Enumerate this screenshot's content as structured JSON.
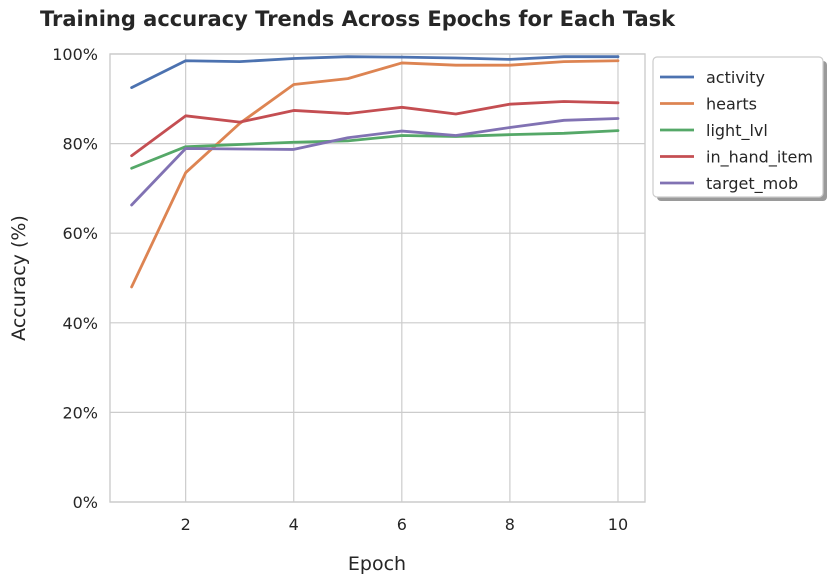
{
  "chart_data": {
    "type": "line",
    "title": "Training accuracy Trends Across Epochs for Each Task",
    "xlabel": "Epoch",
    "ylabel": "Accuracy (%)",
    "x": [
      1,
      2,
      3,
      4,
      5,
      6,
      7,
      8,
      9,
      10
    ],
    "xlim": [
      0.6,
      10.5
    ],
    "ylim": [
      0,
      100
    ],
    "xticks": [
      {
        "value": 2,
        "label": "2"
      },
      {
        "value": 4,
        "label": "4"
      },
      {
        "value": 6,
        "label": "6"
      },
      {
        "value": 8,
        "label": "8"
      },
      {
        "value": 10,
        "label": "10"
      }
    ],
    "yticks": [
      {
        "value": 0,
        "label": "0%"
      },
      {
        "value": 20,
        "label": "20%"
      },
      {
        "value": 40,
        "label": "40%"
      },
      {
        "value": 60,
        "label": "60%"
      },
      {
        "value": 80,
        "label": "80%"
      },
      {
        "value": 100,
        "label": "100%"
      }
    ],
    "grid": true,
    "legend_position": "outside-top-right",
    "series": [
      {
        "name": "activity",
        "color": "#4c72b0",
        "values": [
          92.5,
          98.5,
          98.3,
          99.0,
          99.4,
          99.3,
          99.1,
          98.8,
          99.4,
          99.4
        ]
      },
      {
        "name": "hearts",
        "color": "#dd8452",
        "values": [
          48.0,
          73.5,
          84.5,
          93.2,
          94.5,
          98.0,
          97.5,
          97.5,
          98.3,
          98.5
        ]
      },
      {
        "name": "light_lvl",
        "color": "#55a868",
        "values": [
          74.5,
          79.3,
          79.8,
          80.3,
          80.6,
          81.8,
          81.6,
          82.0,
          82.3,
          82.9
        ]
      },
      {
        "name": "in_hand_item",
        "color": "#c44e52",
        "values": [
          77.3,
          86.2,
          84.8,
          87.4,
          86.7,
          88.1,
          86.6,
          88.8,
          89.4,
          89.1
        ]
      },
      {
        "name": "target_mob",
        "color": "#8172b3",
        "values": [
          66.3,
          78.9,
          78.8,
          78.7,
          81.3,
          82.8,
          81.8,
          83.6,
          85.2,
          85.6
        ]
      }
    ]
  }
}
